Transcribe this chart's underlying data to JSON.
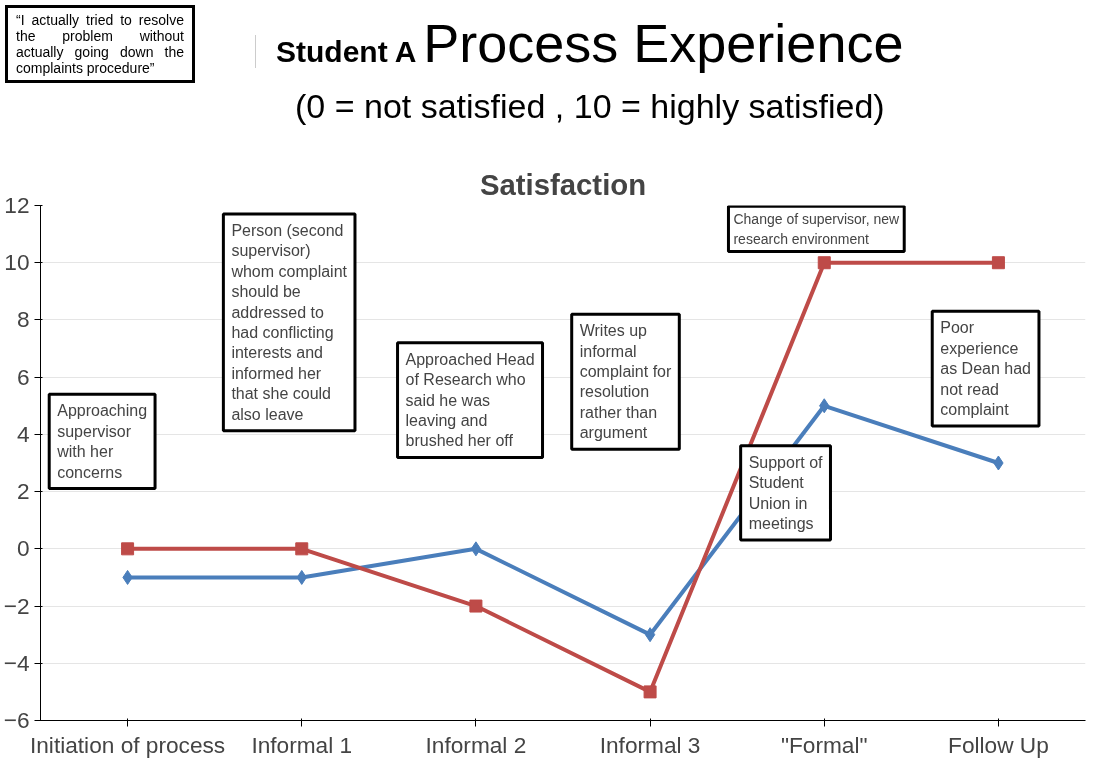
{
  "chart_data": {
    "type": "line",
    "title": "Process Experience",
    "subtitle": "(0 = not satisfied , 10 = highly satisfied)",
    "annotations": [
      "“I actually tried to resolve the problem without actually going down the complaints procedure”",
      "Student A",
      "Satisfaction",
      "Approaching supervisor with her concerns",
      "Person (second supervisor) whom complaint should be addressed to had conflicting interests and informed her that she could also leave",
      "Approached Head of Research who said he was leaving and brushed her off",
      "Writes up informal complaint for resolution rather than argument",
      "Change of supervisor, new research environment",
      "Support of Student Union in meetings",
      "Poor experience as Dean had not read complaint"
    ],
    "categories": [
      "Initiation of process",
      "Informal 1",
      "Informal 2",
      "Informal 3",
      "\"Formal\"",
      "Follow Up"
    ],
    "series": [
      {
        "color": "#4a7ebb",
        "marker": "diamond",
        "values": [
          -1,
          -1,
          0,
          -3,
          5,
          3
        ]
      },
      {
        "color": "#be4b48",
        "marker": "square",
        "values": [
          0,
          0,
          -2,
          -5,
          10,
          10
        ]
      }
    ],
    "ylim": [
      -6,
      12
    ],
    "yticks": [
      -6,
      -4,
      -2,
      0,
      2,
      4,
      6,
      8,
      10,
      12
    ],
    "grid": "y"
  }
}
